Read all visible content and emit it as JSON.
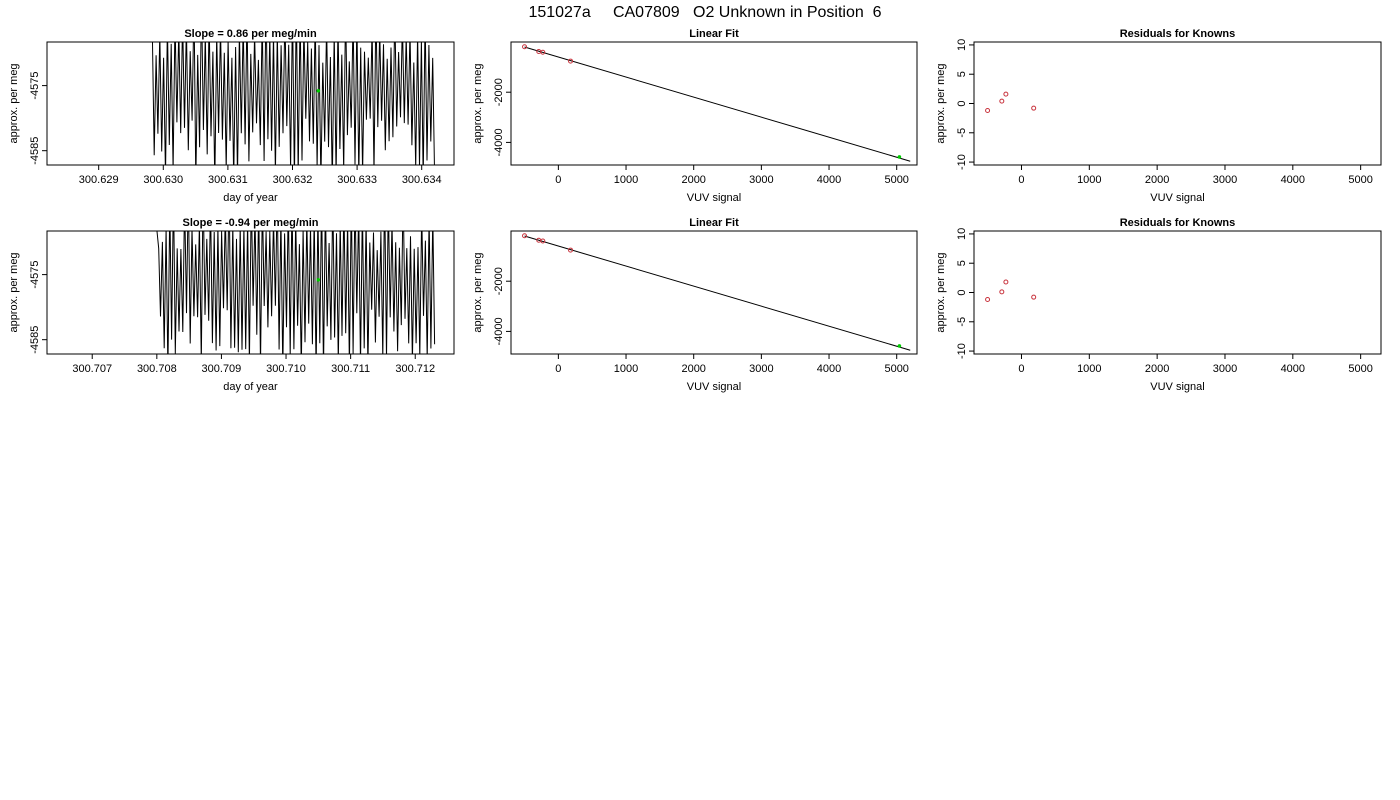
{
  "page_title": "151027a     CA07809   O2 Unknown in Position  6",
  "colors": {
    "line": "#000000",
    "known_points": "#c8323c",
    "unknown_point": "#00cc00",
    "frame": "#000000"
  },
  "chart_data": [
    {
      "type": "line",
      "title": "Slope =  0.86  per meg/min",
      "xlabel": "day of year",
      "ylabel": "approx. per meg",
      "xlim": [
        300.6282,
        300.6345
      ],
      "ylim": [
        -4587.2,
        -4568.3
      ],
      "xticks": [
        300.629,
        300.63,
        300.631,
        300.632,
        300.633,
        300.634
      ],
      "xtick_labels": [
        "300.629",
        "300.630",
        "300.631",
        "300.632",
        "300.633",
        "300.634"
      ],
      "yticks": [
        -4575,
        -4585
      ],
      "ytick_labels": [
        "-4575",
        "-4585"
      ],
      "trace_start": 300.6298,
      "trace_end": 300.6342,
      "trace_mean": -4575.7,
      "trace_description": "rapidly oscillating trace exceeding both axis limits",
      "marker": {
        "x": 300.6324,
        "y": -4575.8
      }
    },
    {
      "type": "scatter",
      "title": "Linear Fit",
      "xlabel": "VUV signal",
      "ylabel": "approx. per meg",
      "xlim": [
        -700,
        5300
      ],
      "ylim": [
        -4900,
        0
      ],
      "xticks": [
        0,
        1000,
        2000,
        3000,
        4000,
        5000
      ],
      "xtick_labels": [
        "0",
        "1000",
        "2000",
        "3000",
        "4000",
        "5000"
      ],
      "yticks": [
        -2000,
        -4000
      ],
      "ytick_labels": [
        "-2000",
        "-4000"
      ],
      "known_points": [
        {
          "x": -500,
          "y": -190
        },
        {
          "x": -290,
          "y": -380
        },
        {
          "x": -230,
          "y": -410
        },
        {
          "x": 180,
          "y": -760
        }
      ],
      "unknown_point": {
        "x": 5040,
        "y": -4580
      },
      "fit_line": {
        "x": [
          -500,
          5200
        ],
        "y": [
          -200,
          -4750
        ]
      }
    },
    {
      "type": "scatter",
      "title": "Residuals for Knowns",
      "xlabel": "VUV signal",
      "ylabel": "approx. per meg",
      "xlim": [
        -700,
        5300
      ],
      "ylim": [
        -10.5,
        10.5
      ],
      "xticks": [
        0,
        1000,
        2000,
        3000,
        4000,
        5000
      ],
      "xtick_labels": [
        "0",
        "1000",
        "2000",
        "3000",
        "4000",
        "5000"
      ],
      "yticks": [
        10,
        5,
        0,
        -5,
        -10
      ],
      "ytick_labels": [
        "10",
        "5",
        "0",
        "-5",
        "-10"
      ],
      "known_points": [
        {
          "x": -500,
          "y": -1.2
        },
        {
          "x": -290,
          "y": 0.4
        },
        {
          "x": -230,
          "y": 1.6
        },
        {
          "x": 180,
          "y": -0.8
        }
      ]
    },
    {
      "type": "line",
      "title": "Slope =  -0.94  per meg/min",
      "xlabel": "day of year",
      "ylabel": "approx. per meg",
      "xlim": [
        300.7063,
        300.7126
      ],
      "ylim": [
        -4587.2,
        -4568.3
      ],
      "xticks": [
        300.707,
        300.708,
        300.709,
        300.71,
        300.711,
        300.712
      ],
      "xtick_labels": [
        "300.707",
        "300.708",
        "300.709",
        "300.710",
        "300.711",
        "300.712"
      ],
      "yticks": [
        -4575,
        -4585
      ],
      "ytick_labels": [
        "-4575",
        "-4585"
      ],
      "trace_start": 300.708,
      "trace_end": 300.7123,
      "trace_mean": -4575.6,
      "trace_description": "rapidly oscillating trace exceeding both axis limits",
      "marker": {
        "x": 300.7105,
        "y": -4575.8
      }
    },
    {
      "type": "scatter",
      "title": "Linear Fit",
      "xlabel": "VUV signal",
      "ylabel": "approx. per meg",
      "xlim": [
        -700,
        5300
      ],
      "ylim": [
        -4900,
        0
      ],
      "xticks": [
        0,
        1000,
        2000,
        3000,
        4000,
        5000
      ],
      "xtick_labels": [
        "0",
        "1000",
        "2000",
        "3000",
        "4000",
        "5000"
      ],
      "yticks": [
        -2000,
        -4000
      ],
      "ytick_labels": [
        "-2000",
        "-4000"
      ],
      "known_points": [
        {
          "x": -500,
          "y": -190
        },
        {
          "x": -290,
          "y": -370
        },
        {
          "x": -230,
          "y": -400
        },
        {
          "x": 180,
          "y": -760
        }
      ],
      "unknown_point": {
        "x": 5040,
        "y": -4580
      },
      "fit_line": {
        "x": [
          -500,
          5200
        ],
        "y": [
          -200,
          -4750
        ]
      }
    },
    {
      "type": "scatter",
      "title": "Residuals for Knowns",
      "xlabel": "VUV signal",
      "ylabel": "approx. per meg",
      "xlim": [
        -700,
        5300
      ],
      "ylim": [
        -10.5,
        10.5
      ],
      "xticks": [
        0,
        1000,
        2000,
        3000,
        4000,
        5000
      ],
      "xtick_labels": [
        "0",
        "1000",
        "2000",
        "3000",
        "4000",
        "5000"
      ],
      "yticks": [
        10,
        5,
        0,
        -5,
        -10
      ],
      "ytick_labels": [
        "10",
        "5",
        "0",
        "-5",
        "-10"
      ],
      "known_points": [
        {
          "x": -500,
          "y": -1.2
        },
        {
          "x": -290,
          "y": 0.1
        },
        {
          "x": -230,
          "y": 1.8
        },
        {
          "x": 180,
          "y": -0.8
        }
      ]
    }
  ]
}
